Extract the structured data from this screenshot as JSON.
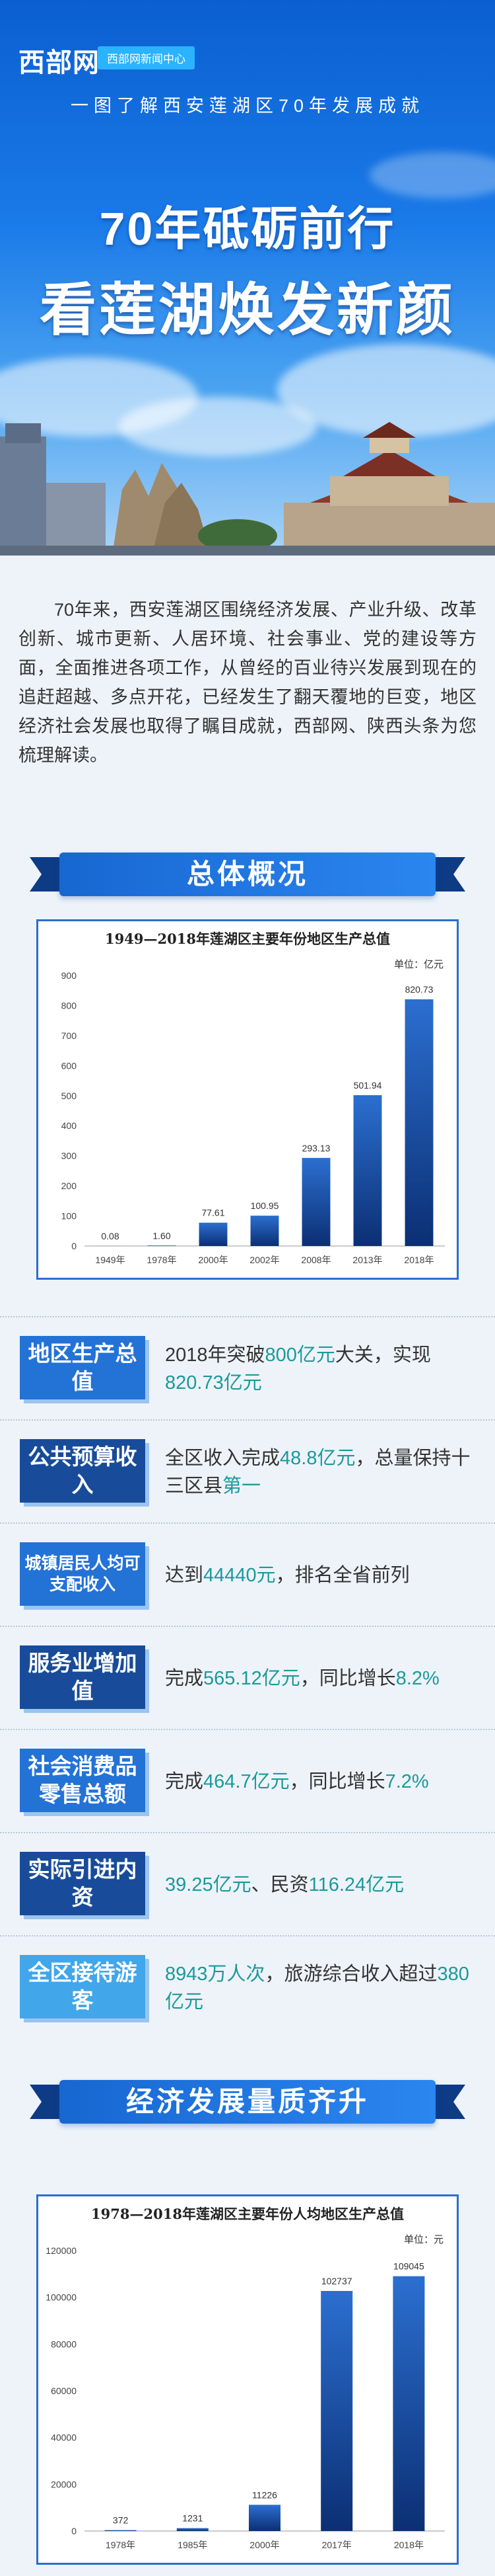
{
  "hero": {
    "logo": "西部网",
    "brand_tag": "西部网新闻中心",
    "subtitle": "一图了解西安莲湖区70年发展成就",
    "title_line1": "70年砥砺前行",
    "title_line2": "看莲湖焕发新颜"
  },
  "intro": "70年来，西安莲湖区围绕经济发展、产业升级、改革创新、城市更新、人居环境、社会事业、党的建设等方面，全面推进各项工作，从曾经的百业待兴发展到现在的追赶超越、多点开花，已经发生了翻天覆地的巨变，地区经济社会发展也取得了瞩目成就，西部网、陕西头条为您梳理解读。",
  "sections": {
    "overview": "总体概况",
    "economy": "经济发展量质齐升"
  },
  "colors": {
    "primary": "#2372d6",
    "dark": "#184c9a",
    "highlight": "#1a9a9a",
    "bar_top": "#2b6fd0",
    "bar_bottom": "#0b2f73"
  },
  "chart_data": [
    {
      "type": "bar",
      "title": "1949—2018年莲湖区主要年份地区生产总值",
      "unit": "单位：亿元",
      "categories": [
        "1949年",
        "1978年",
        "2000年",
        "2002年",
        "2008年",
        "2013年",
        "2018年"
      ],
      "values": [
        0.08,
        1.6,
        77.61,
        100.95,
        293.13,
        501.94,
        820.73
      ],
      "value_labels": [
        "0.08",
        "1.60",
        "77.61",
        "100.95",
        "293.13",
        "501.94",
        "820.73"
      ],
      "yticks": [
        "0",
        "100",
        "200",
        "300",
        "400",
        "500",
        "600",
        "700",
        "800",
        "900"
      ],
      "ylim": [
        0,
        900
      ]
    },
    {
      "type": "bar",
      "title": "1978—2018年莲湖区主要年份人均地区生产总值",
      "unit": "单位：元",
      "categories": [
        "1978年",
        "1985年",
        "2000年",
        "2017年",
        "2018年"
      ],
      "values": [
        372,
        1231,
        11226,
        102737,
        109045
      ],
      "value_labels": [
        "372",
        "1231",
        "11226",
        "102737",
        "109045"
      ],
      "yticks": [
        "0",
        "20000",
        "40000",
        "60000",
        "80000",
        "100000",
        "120000"
      ],
      "ylim": [
        0,
        120000
      ]
    }
  ],
  "stats": [
    {
      "label": "地区生产总值",
      "text_pre": "2018年突破",
      "hl1": "800亿元",
      "text_mid": "大关，实现",
      "hl2": "820.73亿元",
      "text_post": ""
    },
    {
      "label": "公共预算收入",
      "text_pre": "全区收入完成",
      "hl1": "48.8亿元",
      "text_mid": "，总量保持十三区县",
      "hl2": "第一",
      "text_post": ""
    },
    {
      "label": "城镇居民人均可支配收入",
      "text_pre": "达到",
      "hl1": "44440元",
      "text_mid": "，排名全省前列",
      "hl2": "",
      "text_post": ""
    },
    {
      "label": "服务业增加值",
      "text_pre": "完成",
      "hl1": "565.12亿元",
      "text_mid": "，同比增长",
      "hl2": "8.2%",
      "text_post": ""
    },
    {
      "label": "社会消费品零售总额",
      "text_pre": "完成",
      "hl1": "464.7亿元",
      "text_mid": "，同比增长",
      "hl2": "7.2%",
      "text_post": ""
    },
    {
      "label": "实际引进内资",
      "text_pre": "",
      "hl1": "39.25亿元",
      "text_mid": "、民资",
      "hl2": "116.24亿元",
      "text_post": ""
    },
    {
      "label": "全区接待游客",
      "text_pre": "",
      "hl1": "8943万人次",
      "text_mid": "，旅游综合收入超过",
      "hl2": "380亿元",
      "text_post": ""
    }
  ]
}
